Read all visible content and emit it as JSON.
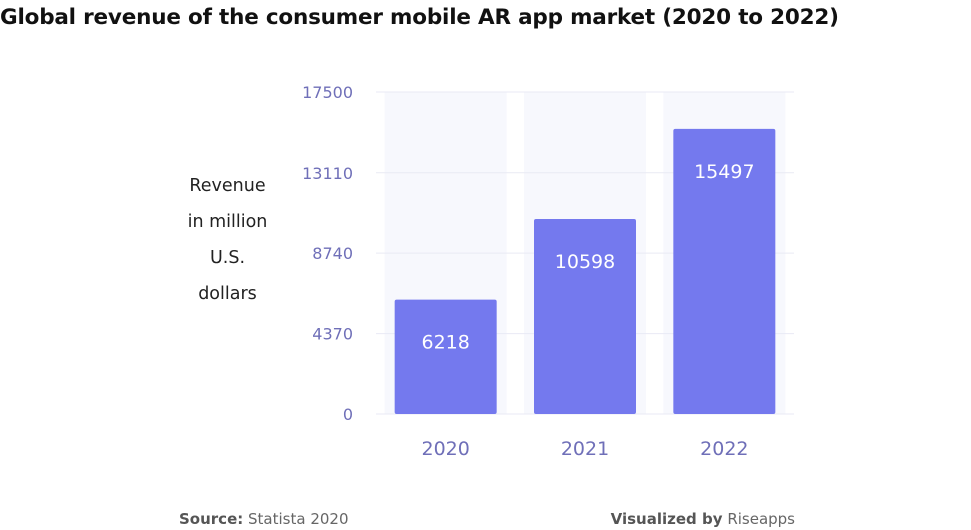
{
  "chart_data": {
    "type": "bar",
    "title": "Global revenue of the consumer mobile AR app market (2020 to 2022)",
    "ylabel_lines": [
      "Revenue",
      "in million",
      "U.S.",
      "dollars"
    ],
    "xlabel": "",
    "categories": [
      "2020",
      "2021",
      "2022"
    ],
    "values": [
      6218,
      10598,
      15497
    ],
    "data_labels": [
      "6218",
      "10598",
      "15497"
    ],
    "ylim": [
      0,
      17500
    ],
    "yticks": [
      0,
      4370,
      8740,
      13110,
      17500
    ],
    "ytick_labels": [
      "0",
      "4370",
      "8740",
      "13110",
      "17500"
    ],
    "grid": true,
    "legend": "none"
  },
  "colors": {
    "bar": "#7479ee",
    "plot_band": "#f7f8fd",
    "grid": "#e9eaf4",
    "tick_text": "#6f6fb8"
  },
  "footer": {
    "source_label": "Source:",
    "source_value": "Statista 2020",
    "credit_label": "Visualized by",
    "credit_value": "Riseapps"
  }
}
